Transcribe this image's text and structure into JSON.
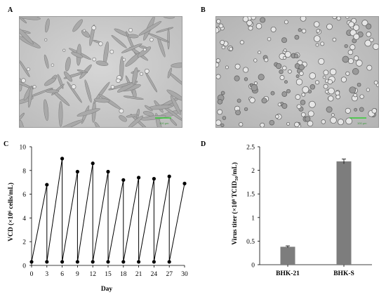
{
  "panels": {
    "A": {
      "letter": "A",
      "scale_label": "100 µm"
    },
    "B": {
      "letter": "B",
      "scale_label": "100 µm"
    },
    "C": {
      "letter": "C"
    },
    "D": {
      "letter": "D"
    }
  },
  "colors": {
    "bar": "#7d7d7d",
    "scale_bar": "#33cc33",
    "micro_bg": "#cfcfcf"
  },
  "chart_data": [
    {
      "panel": "C",
      "type": "line",
      "title": "",
      "xlabel": "Day",
      "ylabel": "VCD (×10⁶ cells/mL)",
      "xticks": [
        "0",
        "3",
        "6",
        "9",
        "12",
        "15",
        "18",
        "21",
        "24",
        "27",
        "30"
      ],
      "yticks": [
        "0",
        "2",
        "4",
        "6",
        "8",
        "10"
      ],
      "xlim": [
        0,
        30
      ],
      "ylim": [
        0,
        10
      ],
      "grid": false,
      "series": [
        {
          "x": [
            0,
            3,
            3,
            6,
            6,
            9,
            9,
            12,
            12,
            15,
            15,
            18,
            18,
            21,
            21,
            24,
            24,
            27,
            27,
            30
          ],
          "y": [
            0.3,
            6.8,
            0.3,
            9.0,
            0.3,
            7.9,
            0.3,
            8.6,
            0.3,
            7.9,
            0.3,
            7.2,
            0.3,
            7.4,
            0.3,
            7.3,
            0.3,
            7.5,
            0.3,
            6.9
          ]
        }
      ]
    },
    {
      "panel": "D",
      "type": "bar",
      "title": "",
      "xlabel": "",
      "ylabel": "Virus titer (×10⁸ TCID",
      "ylabel_sub": "50",
      "ylabel_end": "/mL)",
      "categories": [
        "BHK-21",
        "BHK-S"
      ],
      "values": [
        0.38,
        2.19
      ],
      "errors": [
        0.02,
        0.05
      ],
      "yticks": [
        "0",
        "0.5",
        "1",
        "1.5",
        "2",
        "2.5"
      ],
      "ylim": [
        0,
        2.5
      ],
      "grid": false
    }
  ]
}
